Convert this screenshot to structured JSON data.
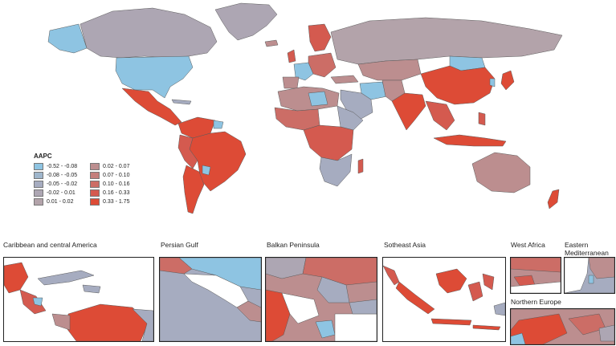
{
  "legend": {
    "title": "AAPC",
    "bins": [
      {
        "label": "-0.52 - -0.08",
        "color": "#8ec4e2"
      },
      {
        "label": "-0.08 - -0.05",
        "color": "#9fb6cc"
      },
      {
        "label": "-0.05 - -0.02",
        "color": "#a6acc0"
      },
      {
        "label": "-0.02 - 0.01",
        "color": "#ada6b3"
      },
      {
        "label": "0.01 - 0.02",
        "color": "#b3a3aa"
      },
      {
        "label": "0.02 - 0.07",
        "color": "#bc8e8f"
      },
      {
        "label": "0.07 - 0.10",
        "color": "#c47e7b"
      },
      {
        "label": "0.10 - 0.16",
        "color": "#cc6d66"
      },
      {
        "label": "0.16 - 0.33",
        "color": "#d45a4f"
      },
      {
        "label": "0.33 - 1.75",
        "color": "#dd4b36"
      }
    ]
  },
  "insets": [
    {
      "title": "Caribbean and central America"
    },
    {
      "title": "Persian Gulf"
    },
    {
      "title": "Balkan Peninsula"
    },
    {
      "title": "Sotheast Asia"
    },
    {
      "title": "West Africa"
    },
    {
      "title": "Eastern Mediterranean"
    },
    {
      "title": "Northern Europe"
    }
  ]
}
